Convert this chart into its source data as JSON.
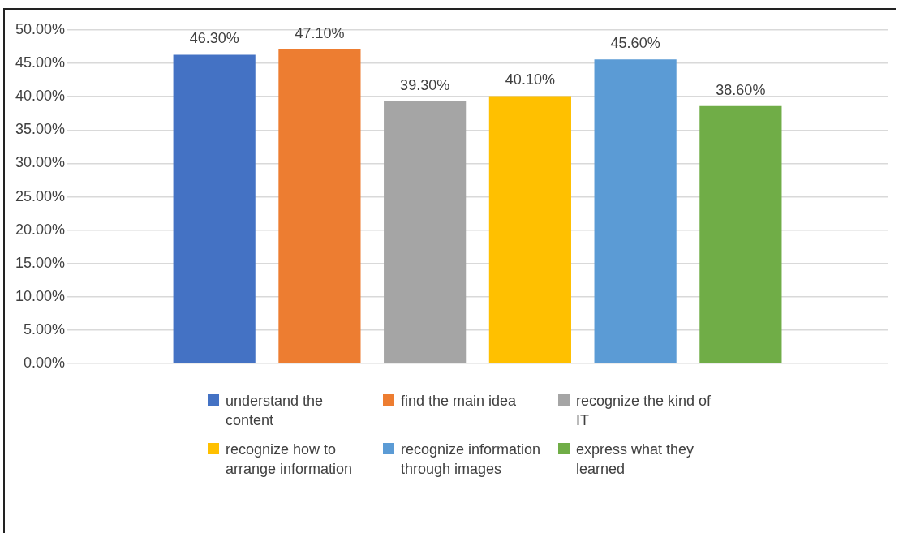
{
  "chart_data": {
    "type": "bar",
    "categories": [
      null
    ],
    "series": [
      {
        "name": "understand the content",
        "color": "#4472c4",
        "values": [
          46.3
        ],
        "value_labels": [
          "46.30%"
        ]
      },
      {
        "name": "find the main idea",
        "color": "#ed7d31",
        "values": [
          47.1
        ],
        "value_labels": [
          "47.10%"
        ]
      },
      {
        "name": "recognize the kind of IT",
        "color": "#a5a5a5",
        "values": [
          39.3
        ],
        "value_labels": [
          "39.30%"
        ]
      },
      {
        "name": "recognize how to arrange information",
        "color": "#ffc000",
        "values": [
          40.1
        ],
        "value_labels": [
          "40.10%"
        ]
      },
      {
        "name": "recognize information through images",
        "color": "#5b9bd5",
        "values": [
          45.6
        ],
        "value_labels": [
          "45.60%"
        ]
      },
      {
        "name": "express what they learned",
        "color": "#70ad47",
        "values": [
          38.6
        ],
        "value_labels": [
          "38.60%"
        ]
      }
    ],
    "ylim": [
      0,
      50
    ],
    "yticks": [
      {
        "value": 0,
        "label": "0.00%"
      },
      {
        "value": 5,
        "label": "5.00%"
      },
      {
        "value": 10,
        "label": "10.00%"
      },
      {
        "value": 15,
        "label": "15.00%"
      },
      {
        "value": 20,
        "label": "20.00%"
      },
      {
        "value": 25,
        "label": "25.00%"
      },
      {
        "value": 30,
        "label": "30.00%"
      },
      {
        "value": 35,
        "label": "35.00%"
      },
      {
        "value": 40,
        "label": "40.00%"
      },
      {
        "value": 45,
        "label": "45.00%"
      },
      {
        "value": 50,
        "label": "50.00%"
      }
    ],
    "grid": "y",
    "legend": "bottom",
    "tick_labels": "y"
  }
}
